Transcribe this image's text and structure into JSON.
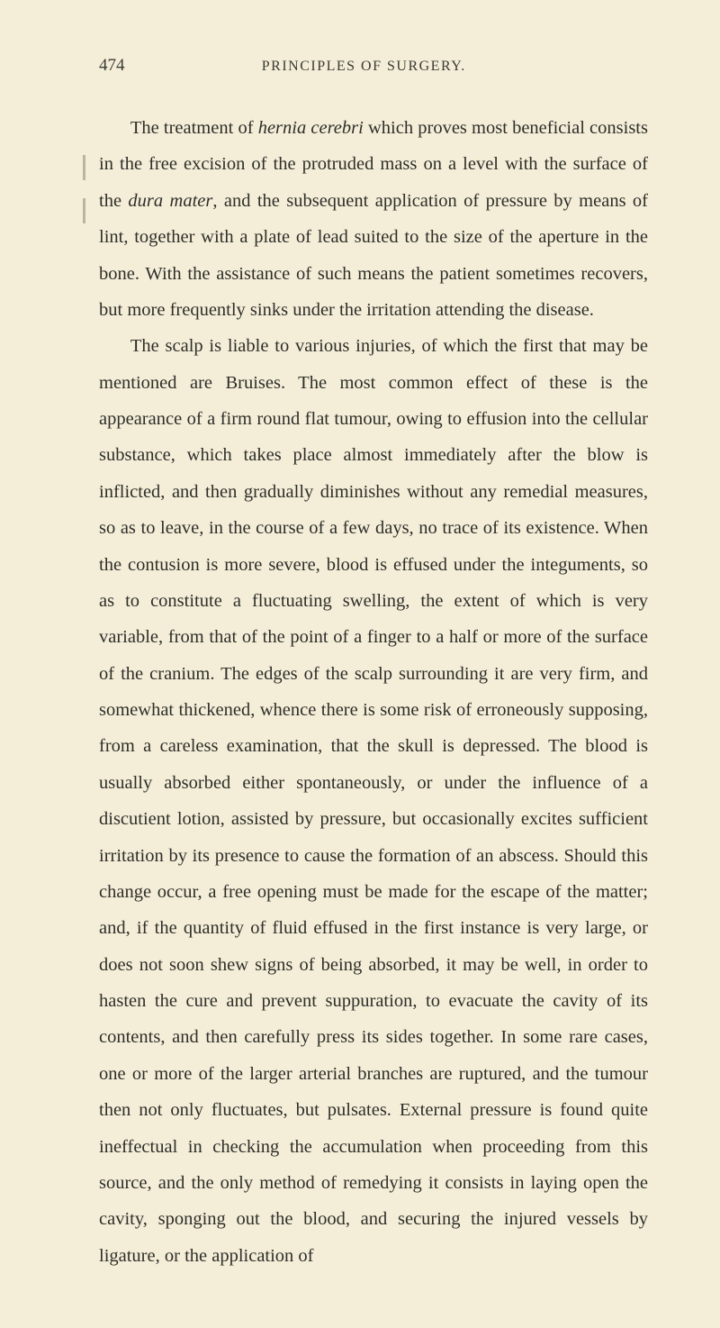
{
  "page_number": "474",
  "running_head": "PRINCIPLES OF SURGERY.",
  "paragraphs": [
    {
      "text_parts": [
        {
          "text": "The treatment of ",
          "italic": false
        },
        {
          "text": "hernia cerebri",
          "italic": true
        },
        {
          "text": " which proves most beneficial consists in the free excision of the protruded mass on a level with the surface of the ",
          "italic": false
        },
        {
          "text": "dura mater",
          "italic": true
        },
        {
          "text": ", and the subsequent application of pressure by means of lint, together with a plate of lead suited to the size of the aperture in the bone. With the assistance of such means the patient sometimes recovers, but more frequently sinks under the irritation attending the disease.",
          "italic": false
        }
      ]
    },
    {
      "text_parts": [
        {
          "text": "The scalp is liable to various injuries, of which the first that may be mentioned are Bruises. The most common effect of these is the appearance of a firm round flat tumour, owing to effusion into the cellular substance, which takes place almost immediately after the blow is inflicted, and then gradually diminishes without any remedial measures, so as to leave, in the course of a few days, no trace of its existence. When the contusion is more severe, blood is effused under the integuments, so as to constitute a fluctuating swelling, the extent of which is very variable, from that of the point of a finger to a half or more of the surface of the cranium. The edges of the scalp surrounding it are very firm, and somewhat thickened, whence there is some risk of erroneously supposing, from a careless examination, that the skull is depressed. The blood is usually absorbed either spontaneously, or under the influence of a discutient lotion, assisted by pressure, but occasionally excites sufficient irritation by its presence to cause the formation of an abscess. Should this change occur, a free opening must be made for the escape of the matter; and, if the quantity of fluid effused in the first instance is very large, or does not soon shew signs of being absorbed, it may be well, in order to hasten the cure and prevent suppuration, to evacuate the cavity of its contents, and then carefully press its sides together. In some rare cases, one or more of the larger arterial branches are ruptured, and the tumour then not only fluctuates, but pulsates. External pressure is found quite ineffectual in checking the accumulation when proceeding from this source, and the only method of remedying it consists in laying open the cavity, sponging out the blood, and securing the injured vessels by ligature, or the application of",
          "italic": false
        }
      ]
    }
  ],
  "colors": {
    "background": "#f4eed9",
    "text": "#2e2e28",
    "header_text": "#3a3a32"
  },
  "typography": {
    "body_font_size": 20.5,
    "body_line_height": 1.97,
    "header_font_size": 16,
    "page_number_font_size": 19
  }
}
